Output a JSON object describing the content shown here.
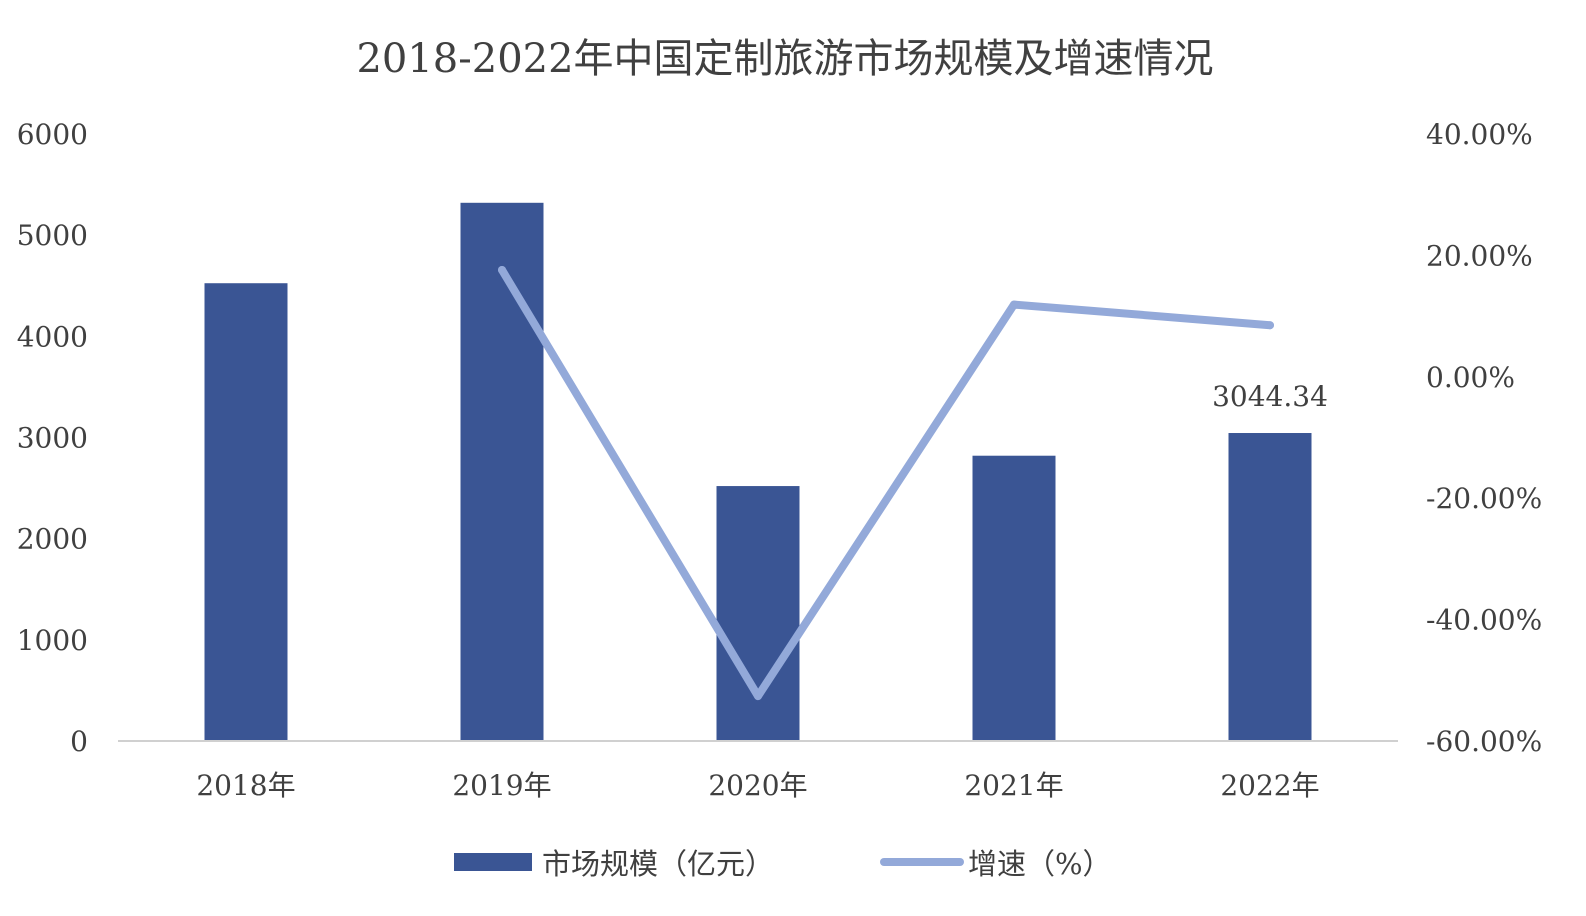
{
  "chart_data": {
    "type": "bar",
    "title": "2018-2022年中国定制旅游市场规模及增速情况",
    "categories": [
      "2018年",
      "2019年",
      "2020年",
      "2021年",
      "2022年"
    ],
    "series": [
      {
        "name": "市场规模（亿元）",
        "type": "bar",
        "axis": "left",
        "color": "#3A5594",
        "values": [
          4525,
          5320,
          2520,
          2820,
          3044.34
        ]
      },
      {
        "name": "增速（%）",
        "type": "line",
        "axis": "right",
        "color": "#93A9D9",
        "values": [
          null,
          17.6,
          -52.6,
          11.9,
          8.5
        ]
      }
    ],
    "data_labels": [
      {
        "series": 0,
        "index": 4,
        "text": "3044.34"
      }
    ],
    "left_axis": {
      "ylim": [
        0,
        6000
      ],
      "ticks": [
        0,
        1000,
        2000,
        3000,
        4000,
        5000,
        6000
      ],
      "tick_labels": [
        "0",
        "1000",
        "2000",
        "3000",
        "4000",
        "5000",
        "6000"
      ]
    },
    "right_axis": {
      "ylim": [
        -60,
        40
      ],
      "ticks": [
        -60,
        -40,
        -20,
        0,
        20,
        40
      ],
      "tick_labels": [
        "-60.00%",
        "-40.00%",
        "-20.00%",
        "0.00%",
        "20.00%",
        "40.00%"
      ]
    },
    "grid": false,
    "legend_position": "bottom-center"
  }
}
